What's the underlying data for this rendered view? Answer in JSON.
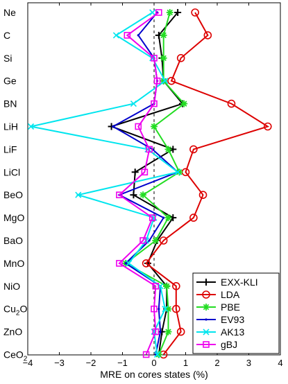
{
  "chart_data": {
    "type": "line",
    "title": "",
    "xlabel": "MRE on cores states   (%)",
    "ylabel": "",
    "xlim": [
      -4,
      4
    ],
    "xticks": [
      -4,
      -3,
      -2,
      -1,
      0,
      1,
      2,
      3,
      4
    ],
    "zero_line": "dashed",
    "grid": false,
    "legend_position": "lower-right",
    "categories": [
      "Ne",
      "C",
      "Si",
      "Ge",
      "BN",
      "LiH",
      "LiF",
      "LiCl",
      "BeO",
      "MgO",
      "BaO",
      "MnO",
      "NiO",
      "Cu2O",
      "ZnO",
      "CeO2"
    ],
    "category_labels": [
      {
        "base": "Ne",
        "sub": ""
      },
      {
        "base": "C",
        "sub": ""
      },
      {
        "base": "Si",
        "sub": ""
      },
      {
        "base": "Ge",
        "sub": ""
      },
      {
        "base": "BN",
        "sub": ""
      },
      {
        "base": "LiH",
        "sub": ""
      },
      {
        "base": "LiF",
        "sub": ""
      },
      {
        "base": "LiCl",
        "sub": ""
      },
      {
        "base": "BeO",
        "sub": ""
      },
      {
        "base": "MgO",
        "sub": ""
      },
      {
        "base": "BaO",
        "sub": ""
      },
      {
        "base": "MnO",
        "sub": ""
      },
      {
        "base": "NiO",
        "sub": ""
      },
      {
        "base": "Cu",
        "sub": "2",
        "tail": "O"
      },
      {
        "base": "ZnO",
        "sub": ""
      },
      {
        "base": "CeO",
        "sub": "2"
      }
    ],
    "series": [
      {
        "name": "EXX-KLI",
        "color": "#000000",
        "marker": "plus",
        "values": [
          0.75,
          0.15,
          0.25,
          0.3,
          0.9,
          -1.35,
          0.6,
          -0.6,
          -0.65,
          0.6,
          0.1,
          -0.2,
          0.4,
          0.4,
          0.25,
          0.15
        ]
      },
      {
        "name": "LDA",
        "color": "#dd0000",
        "marker": "circle",
        "values": [
          1.3,
          1.7,
          0.85,
          0.55,
          2.45,
          3.6,
          1.25,
          1.0,
          1.55,
          1.25,
          0.3,
          -0.25,
          0.7,
          0.7,
          0.85,
          0.3
        ]
      },
      {
        "name": "PBE",
        "color": "#22dd22",
        "marker": "asterisk",
        "values": [
          0.5,
          0.3,
          0.3,
          0.3,
          0.95,
          0.0,
          0.45,
          0.8,
          -0.35,
          0.45,
          0.05,
          -0.9,
          0.4,
          0.45,
          0.45,
          0.15
        ]
      },
      {
        "name": "EV93",
        "color": "#0000cc",
        "marker": "dot",
        "values": [
          0.1,
          -0.5,
          0.0,
          0.1,
          0.0,
          -1.3,
          -0.05,
          0.75,
          -1.1,
          0.3,
          -0.15,
          -0.9,
          0.2,
          0.15,
          0.2,
          0.05
        ]
      },
      {
        "name": "AK13",
        "color": "#00e5ee",
        "marker": "x",
        "values": [
          -0.05,
          -1.2,
          -0.05,
          0.35,
          -0.65,
          -3.9,
          -0.2,
          0.75,
          -2.4,
          0.0,
          -0.25,
          -0.8,
          0.2,
          0.35,
          0.0,
          0.1
        ]
      },
      {
        "name": "gBJ",
        "color": "#ee00ee",
        "marker": "square",
        "values": [
          0.15,
          -0.85,
          0.0,
          0.1,
          0.0,
          -0.5,
          -0.15,
          -0.3,
          -1.1,
          -0.05,
          -0.35,
          -1.1,
          0.05,
          0.0,
          0.05,
          -0.25
        ]
      }
    ]
  }
}
